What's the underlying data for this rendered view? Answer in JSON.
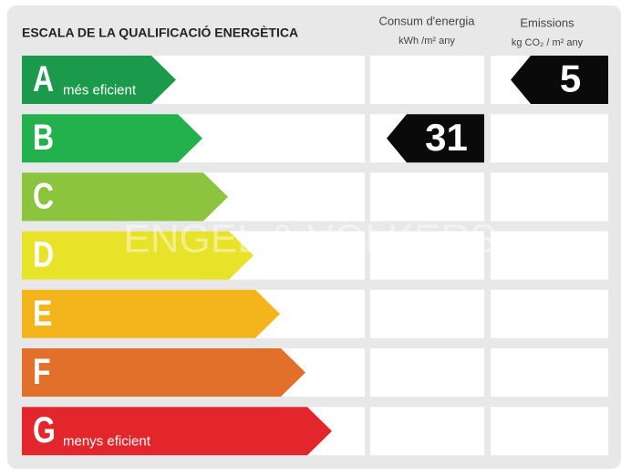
{
  "header": {
    "title": "ESCALA DE LA QUALIFICACIÓ ENERGÈTICA",
    "consumption": {
      "title": "Consum d'energia",
      "unit": "kWh /m² any"
    },
    "emissions": {
      "title": "Emissions",
      "unit": "kg CO₂ / m² any"
    }
  },
  "watermark": "ENGEL & VÖLKERS",
  "rows": [
    {
      "letter": "A",
      "label": "més eficient",
      "color": "#1a9a4a",
      "emissions": 5
    },
    {
      "letter": "B",
      "color": "#23b14d",
      "consumption": 31
    },
    {
      "letter": "C",
      "color": "#8cc43f"
    },
    {
      "letter": "D",
      "color": "#e8e229"
    },
    {
      "letter": "E",
      "color": "#f4b41c"
    },
    {
      "letter": "F",
      "color": "#e2702a"
    },
    {
      "letter": "G",
      "label": "menys eficient",
      "color": "#e3262b"
    }
  ]
}
